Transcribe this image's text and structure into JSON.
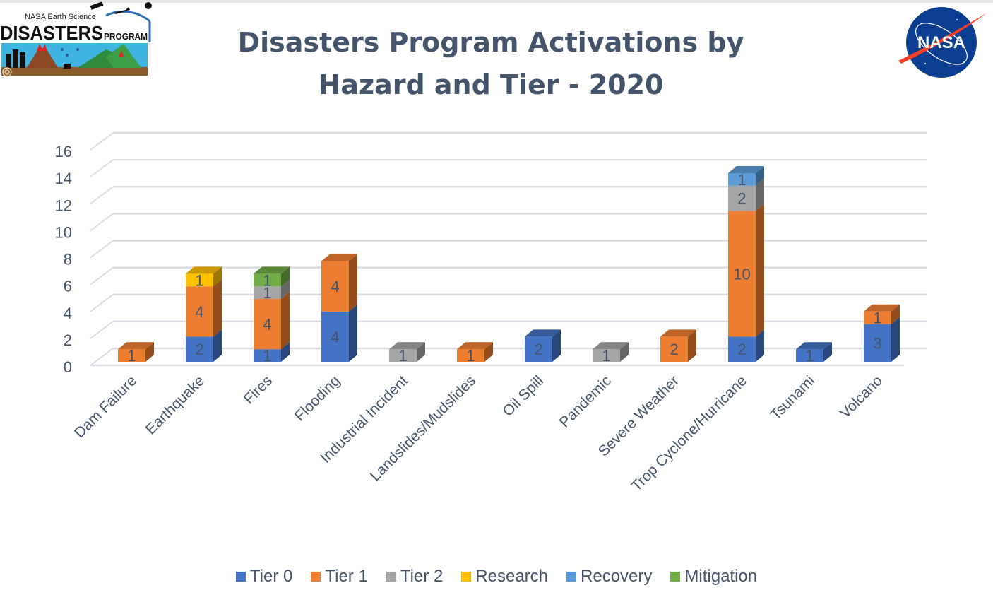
{
  "header": {
    "title_line1": "Disasters Program Activations by",
    "title_line2": "Hazard and Tier - 2020",
    "left_logo": {
      "top_text": "NASA Earth Science",
      "main_text": "DISASTERS",
      "sub_text": "PROGRAM"
    },
    "right_logo": {
      "text": "NASA"
    }
  },
  "chart_data": {
    "type": "bar",
    "stacked": true,
    "style": "3d-column",
    "title": "Disasters Program Activations by Hazard and Tier - 2020",
    "xlabel": "",
    "ylabel": "",
    "ylim": [
      0,
      16
    ],
    "yticks": [
      0,
      2,
      4,
      6,
      8,
      10,
      12,
      14,
      16
    ],
    "grid": true,
    "legend_position": "bottom",
    "categories": [
      "Dam Failure",
      "Earthquake",
      "Fires",
      "Flooding",
      "Industrial Incident",
      "Landslides/Mudslides",
      "Oil Spill",
      "Pandemic",
      "Severe Weather",
      "Trop Cyclone/Hurricane",
      "Tsunami",
      "Volcano"
    ],
    "series": [
      {
        "name": "Tier 0",
        "color": "#4472c4",
        "values": [
          0,
          2,
          1,
          4,
          0,
          0,
          2,
          0,
          0,
          2,
          1,
          3
        ]
      },
      {
        "name": "Tier 1",
        "color": "#ed7d31",
        "values": [
          1,
          4,
          4,
          4,
          0,
          1,
          0,
          0,
          2,
          10,
          0,
          1
        ]
      },
      {
        "name": "Tier 2",
        "color": "#a5a5a5",
        "values": [
          0,
          0,
          1,
          0,
          1,
          0,
          0,
          1,
          0,
          2,
          0,
          0
        ]
      },
      {
        "name": "Research",
        "color": "#ffc000",
        "values": [
          0,
          1,
          0,
          0,
          0,
          0,
          0,
          0,
          0,
          0,
          0,
          0
        ]
      },
      {
        "name": "Recovery",
        "color": "#5b9bd5",
        "values": [
          0,
          0,
          0,
          0,
          0,
          0,
          0,
          0,
          0,
          1,
          0,
          0
        ]
      },
      {
        "name": "Mitigation",
        "color": "#70ad47",
        "values": [
          0,
          0,
          1,
          0,
          0,
          0,
          0,
          0,
          0,
          0,
          0,
          0
        ]
      }
    ]
  }
}
